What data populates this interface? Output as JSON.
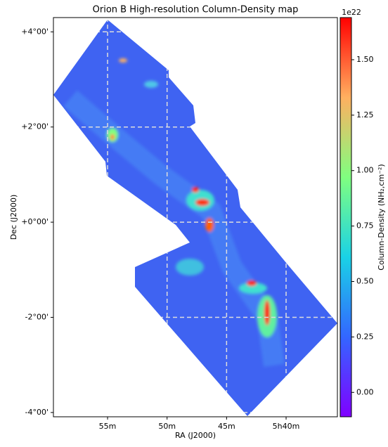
{
  "chart_data": {
    "type": "image",
    "title": "Orion B High-resolution Column-Density map",
    "x_label": "RA (J2000)",
    "y_label": "Dec (J2000)",
    "xlim": [
      59.55,
      35.69
    ],
    "xticks": [
      {
        "value": 55,
        "label": "55m"
      },
      {
        "value": 50,
        "label": "50m"
      },
      {
        "value": 45,
        "label": "45m"
      },
      {
        "value": 40,
        "label": "5h40m"
      }
    ],
    "ylim": [
      -4.09,
      4.3
    ],
    "yticks": [
      {
        "value": 4,
        "label": "+4°00'"
      },
      {
        "value": 2,
        "label": "+2°00'"
      },
      {
        "value": 0,
        "label": "+0°00'"
      },
      {
        "value": -2,
        "label": "-2°00'"
      },
      {
        "value": -4,
        "label": "-4°00'"
      }
    ],
    "grid": true,
    "colorbar": {
      "colormap": "rainbow",
      "clim": [
        -0.11,
        1.69
      ],
      "offset_label": "1e22",
      "label": "Column-Density (NH₂,cm⁻²)",
      "ticks": [
        {
          "value": 0,
          "label": "0.00"
        },
        {
          "value": 0.25,
          "label": "0.25"
        },
        {
          "value": 0.5,
          "label": "0.50"
        },
        {
          "value": 0.75,
          "label": "0.75"
        },
        {
          "value": 1,
          "label": "1.00"
        },
        {
          "value": 1.25,
          "label": "1.25"
        },
        {
          "value": 1.5,
          "label": "1.50"
        }
      ]
    }
  }
}
